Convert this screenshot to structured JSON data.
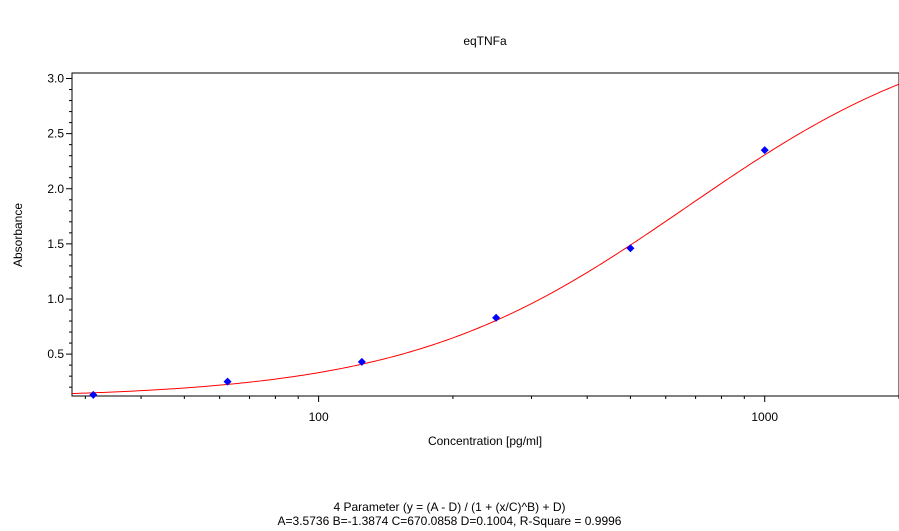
{
  "chart_data": {
    "type": "scatter",
    "title": "eqTNFa",
    "xlabel": "Concentration [pg/ml]",
    "ylabel": "Absorbance",
    "x_scale": "log",
    "xlim": [
      28,
      2000
    ],
    "ylim": [
      0.12,
      3.05
    ],
    "x_tick_labels": [
      "100",
      "1000"
    ],
    "y_tick_labels": [
      "0.5",
      "1.0",
      "1.5",
      "2.0",
      "2.5",
      "3.0"
    ],
    "grid": false,
    "point_color": "#0000ff",
    "curve_color": "#ff0000",
    "points": [
      {
        "x": 31.25,
        "y": 0.13
      },
      {
        "x": 62.5,
        "y": 0.25
      },
      {
        "x": 125,
        "y": 0.43
      },
      {
        "x": 250,
        "y": 0.83
      },
      {
        "x": 500,
        "y": 1.46
      },
      {
        "x": 1000,
        "y": 2.35
      }
    ],
    "fit": {
      "A": 3.5736,
      "B": -1.3874,
      "C": 670.0858,
      "D": 0.1004
    }
  },
  "footer": {
    "formula": "4 Parameter (y = (A - D) / (1 + (x/C)^B) + D)",
    "params": "A=3.5736  B=-1.3874  C=670.0858  D=0.1004, R-Square = 0.9996"
  }
}
